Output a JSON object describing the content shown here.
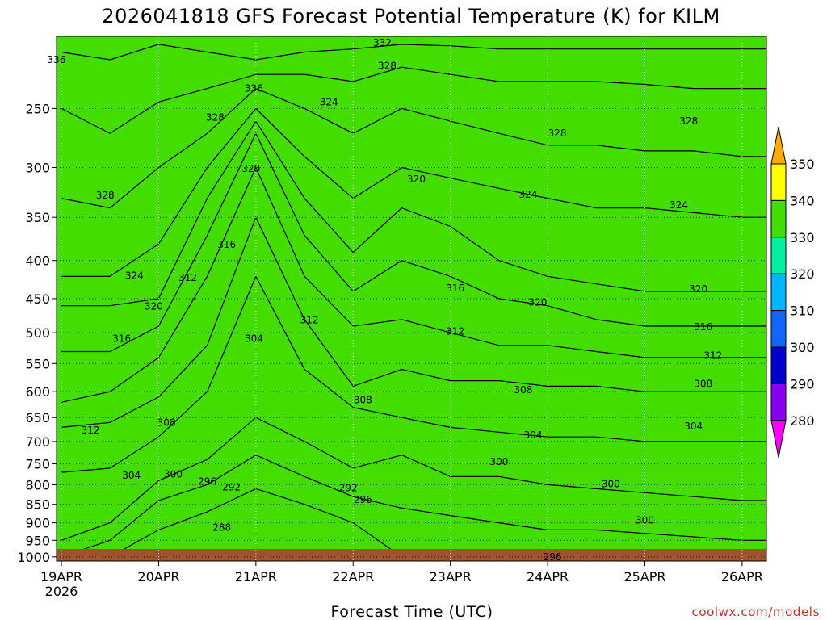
{
  "chart_data": {
    "type": "heatmap",
    "title": "2026041818 GFS Forecast Potential Temperature (K) for KILM",
    "xlabel": "Forecast Time (UTC)",
    "ylabel": "",
    "credit": "coolwx.com/models",
    "y_scale": "log-pressure",
    "ylim": [
      1000,
      200
    ],
    "y_ticks": [
      "250",
      "300",
      "350",
      "400",
      "450",
      "500",
      "550",
      "600",
      "650",
      "700",
      "750",
      "800",
      "850",
      "900",
      "950",
      "1000"
    ],
    "x_ticks": [
      {
        "label": "19APR",
        "sub": "2026",
        "day": 0
      },
      {
        "label": "20APR",
        "sub": "",
        "day": 1
      },
      {
        "label": "21APR",
        "sub": "",
        "day": 2
      },
      {
        "label": "22APR",
        "sub": "",
        "day": 3
      },
      {
        "label": "23APR",
        "sub": "",
        "day": 4
      },
      {
        "label": "24APR",
        "sub": "",
        "day": 5
      },
      {
        "label": "25APR",
        "sub": "",
        "day": 6
      },
      {
        "label": "26APR",
        "sub": "",
        "day": 7
      }
    ],
    "xlim_days": [
      -0.05,
      7.25
    ],
    "grid": true,
    "colorbar": {
      "ticks": [
        "280",
        "290",
        "300",
        "310",
        "320",
        "330",
        "340",
        "350"
      ],
      "colors": [
        "#ff00ff",
        "#8800ee",
        "#0000cc",
        "#1166ff",
        "#00b6ff",
        "#00f0a0",
        "#44dd00",
        "#ffff00",
        "#ffaa00"
      ]
    },
    "contour_interval_K": 4,
    "x_days": [
      0,
      0.5,
      1,
      1.5,
      2,
      2.5,
      3,
      3.5,
      4,
      4.5,
      5,
      5.5,
      6,
      6.5,
      7,
      7.25
    ],
    "isentrope_pressure_hPa": [
      {
        "theta": 292,
        "values": [
          1000,
          1000,
          920,
          870,
          810,
          850,
          900,
          1000,
          1000,
          1000,
          1000,
          1000,
          1000,
          1000,
          1000,
          1000
        ]
      },
      {
        "theta": 296,
        "values": [
          1000,
          950,
          840,
          800,
          730,
          780,
          830,
          860,
          880,
          900,
          920,
          920,
          930,
          940,
          950,
          950
        ]
      },
      {
        "theta": 300,
        "values": [
          950,
          900,
          790,
          740,
          650,
          700,
          760,
          730,
          780,
          780,
          800,
          810,
          820,
          830,
          840,
          840
        ]
      },
      {
        "theta": 304,
        "values": [
          770,
          760,
          690,
          600,
          420,
          560,
          630,
          650,
          670,
          680,
          690,
          690,
          700,
          700,
          700,
          700
        ]
      },
      {
        "theta": 308,
        "values": [
          670,
          660,
          610,
          520,
          350,
          480,
          590,
          560,
          580,
          580,
          590,
          590,
          600,
          600,
          600,
          600
        ]
      },
      {
        "theta": 312,
        "values": [
          620,
          600,
          540,
          420,
          300,
          420,
          490,
          480,
          500,
          520,
          520,
          530,
          540,
          540,
          540,
          540
        ]
      },
      {
        "theta": 316,
        "values": [
          530,
          530,
          490,
          370,
          270,
          370,
          440,
          400,
          420,
          450,
          460,
          480,
          490,
          490,
          490,
          490
        ]
      },
      {
        "theta": 320,
        "values": [
          460,
          460,
          450,
          330,
          260,
          330,
          390,
          340,
          360,
          400,
          420,
          430,
          440,
          440,
          440,
          440
        ]
      },
      {
        "theta": 324,
        "values": [
          420,
          420,
          380,
          300,
          250,
          290,
          330,
          300,
          310,
          320,
          330,
          340,
          340,
          345,
          350,
          350
        ]
      },
      {
        "theta": 328,
        "values": [
          330,
          340,
          300,
          270,
          235,
          250,
          270,
          250,
          260,
          270,
          280,
          280,
          285,
          285,
          290,
          290
        ]
      },
      {
        "theta": 332,
        "values": [
          250,
          270,
          245,
          235,
          225,
          225,
          230,
          220,
          225,
          230,
          230,
          230,
          232,
          235,
          235,
          235
        ]
      },
      {
        "theta": 336,
        "values": [
          210,
          215,
          205,
          210,
          215,
          210,
          208,
          205,
          206,
          208,
          208,
          208,
          208,
          208,
          208,
          208
        ]
      }
    ],
    "contour_labels": [
      {
        "text": "336",
        "day": -0.05,
        "p": 215
      },
      {
        "text": "332",
        "day": 3.3,
        "p": 204
      },
      {
        "text": "328",
        "day": 3.35,
        "p": 219
      },
      {
        "text": "336",
        "day": 1.98,
        "p": 235
      },
      {
        "text": "328",
        "day": 1.58,
        "p": 257
      },
      {
        "text": "324",
        "day": 2.75,
        "p": 245
      },
      {
        "text": "328",
        "day": 5.1,
        "p": 270
      },
      {
        "text": "328",
        "day": 6.45,
        "p": 260
      },
      {
        "text": "320",
        "day": 1.95,
        "p": 301
      },
      {
        "text": "320",
        "day": 3.65,
        "p": 311
      },
      {
        "text": "324",
        "day": 4.8,
        "p": 326
      },
      {
        "text": "324",
        "day": 6.35,
        "p": 337
      },
      {
        "text": "328",
        "day": 0.45,
        "p": 327
      },
      {
        "text": "316",
        "day": 1.7,
        "p": 381
      },
      {
        "text": "324",
        "day": 0.75,
        "p": 419
      },
      {
        "text": "312",
        "day": 1.3,
        "p": 422
      },
      {
        "text": "320",
        "day": 0.95,
        "p": 461
      },
      {
        "text": "316",
        "day": 4.05,
        "p": 436
      },
      {
        "text": "320",
        "day": 4.9,
        "p": 455
      },
      {
        "text": "320",
        "day": 6.55,
        "p": 437
      },
      {
        "text": "312",
        "day": 2.55,
        "p": 481
      },
      {
        "text": "316",
        "day": 6.6,
        "p": 491
      },
      {
        "text": "312",
        "day": 4.05,
        "p": 498
      },
      {
        "text": "304",
        "day": 1.98,
        "p": 509
      },
      {
        "text": "316",
        "day": 0.62,
        "p": 509
      },
      {
        "text": "312",
        "day": 6.7,
        "p": 537
      },
      {
        "text": "308",
        "day": 6.6,
        "p": 586
      },
      {
        "text": "308",
        "day": 4.75,
        "p": 597
      },
      {
        "text": "308",
        "day": 3.1,
        "p": 616
      },
      {
        "text": "308",
        "day": 1.08,
        "p": 660
      },
      {
        "text": "304",
        "day": 6.5,
        "p": 668
      },
      {
        "text": "312",
        "day": 0.3,
        "p": 676
      },
      {
        "text": "304",
        "day": 4.85,
        "p": 686
      },
      {
        "text": "300",
        "day": 4.5,
        "p": 745
      },
      {
        "text": "304",
        "day": 0.72,
        "p": 778
      },
      {
        "text": "300",
        "day": 1.15,
        "p": 775
      },
      {
        "text": "296",
        "day": 1.5,
        "p": 792
      },
      {
        "text": "292",
        "day": 1.75,
        "p": 806
      },
      {
        "text": "300",
        "day": 5.65,
        "p": 798
      },
      {
        "text": "292",
        "day": 2.95,
        "p": 808
      },
      {
        "text": "296",
        "day": 3.1,
        "p": 838
      },
      {
        "text": "300",
        "day": 6.0,
        "p": 893
      },
      {
        "text": "288",
        "day": 1.65,
        "p": 913
      },
      {
        "text": "296",
        "day": 5.05,
        "p": 1000
      }
    ]
  }
}
